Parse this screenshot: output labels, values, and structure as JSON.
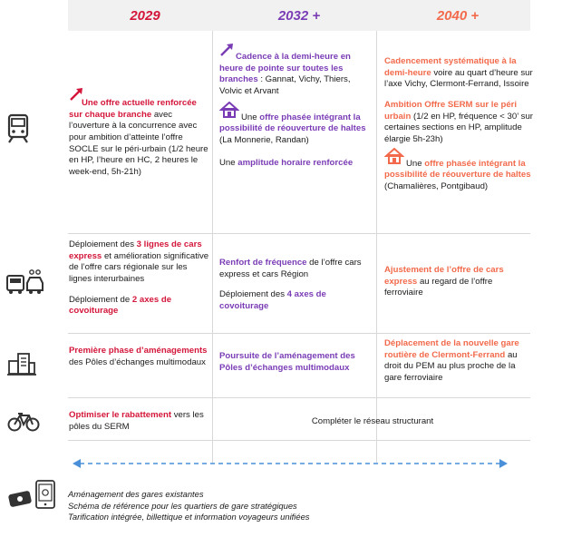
{
  "header": {
    "y2029": "2029",
    "y2032": "2032 +",
    "y2040": "2040 +"
  },
  "colors": {
    "y2029": "#d4163a",
    "y2032": "#7a3cb5",
    "y2040": "#f26a4b",
    "arrow": "#4a90d9"
  },
  "train": {
    "c2029": {
      "em": "Une offre actuelle renforcée sur chaque branche",
      "t1": " avec l’ouverture à la concurrence avec pour ambition d’atteinte l’offre SOCLE sur le péri-urbain (1/2 heure en HP, l’heure en HC, 2 heures le week-end, 5h-21h)"
    },
    "c2032": {
      "p1_em": "Cadence à la demi-heure en heure de pointe sur toutes les branches",
      "p1_t": " : Gannat, Vichy, Thiers, Volvic et Arvant",
      "p2_pre": "Une ",
      "p2_em": "offre phasée intégrant la possibilité de réouverture de haltes",
      "p2_t": " (La Monnerie, Randan)",
      "p3_pre": "Une ",
      "p3_em": "amplitude horaire renforcée"
    },
    "c2040": {
      "p1_em": "Cadencement systématique à la demi-heure",
      "p1_t": " voire au quart d’heure sur l’axe Vichy, Clermont-Ferrand, Issoire",
      "p2_em": "Ambition Offre SERM sur le péri urbain",
      "p2_t": " (1/2 en HP, fréquence < 30’ sur certaines sections en HP, amplitude élargie 5h-23h)",
      "p3_pre": "Une ",
      "p3_em": "offre phasée intégrant la possibilité de réouverture de haltes",
      "p3_t": " (Chamalières, Pontgibaud)"
    }
  },
  "bus": {
    "c2029": {
      "p1_pre": "Déploiement des ",
      "p1_em": "3 lignes de cars express",
      "p1_t": " et amélioration significative de l’offre cars régionale sur les lignes interurbaines",
      "p2_pre": "Déploiement de ",
      "p2_em": "2 axes de covoiturage"
    },
    "c2032": {
      "p1_em": "Renfort de fréquence",
      "p1_t": " de l’offre cars express et cars Région",
      "p2_pre": "Déploiement des ",
      "p2_em": "4 axes de covoiturage"
    },
    "c2040": {
      "p1_em": "Ajustement de l’offre de cars express",
      "p1_t": " au regard de l’offre ferroviaire"
    }
  },
  "pem": {
    "c2029": {
      "em": "Première phase d’aménagements",
      "t": " des Pôles d’échanges multimodaux"
    },
    "c2032": {
      "em": "Poursuite de l’aménagement des Pôles d’échanges multimodaux"
    },
    "c2040": {
      "em": "Déplacement de la nouvelle gare routière de Clermont-Ferrand",
      "t": " au droit du PEM au plus proche de la gare ferroviaire"
    }
  },
  "bike": {
    "c2029": {
      "em": "Optimiser le rabattement",
      "t": " vers les pôles du SERM"
    },
    "c2032_40": "Compléter le réseau structurant"
  },
  "footer": [
    "Aménagement des gares existantes",
    "Schéma de référence pour les quartiers de gare stratégiques",
    "Tarification intégrée, billettique et information voyageurs unifiées"
  ],
  "icons": [
    "train-icon",
    "bus-car-icon",
    "building-icon",
    "bicycle-icon",
    "ticket-phone-icon"
  ]
}
